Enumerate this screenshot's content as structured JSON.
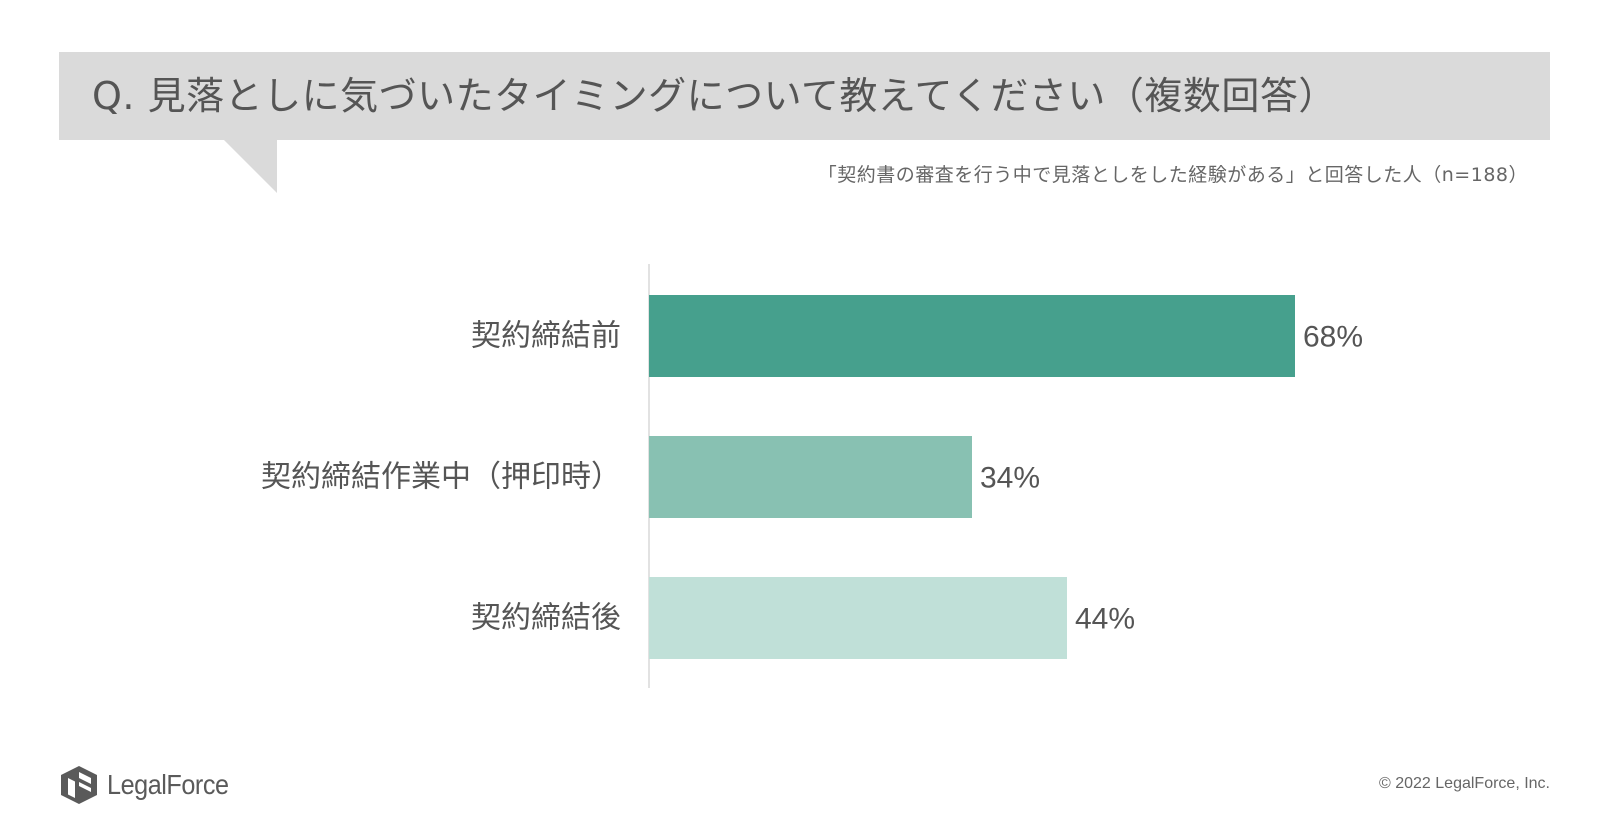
{
  "header": {
    "title": "Q. 見落としに気づいたタイミングについて教えてください（複数回答）",
    "subtitle": "「契約書の審査を行う中で見落としをした経験がある」と回答した人（n=188）"
  },
  "chart_data": {
    "type": "bar",
    "orientation": "horizontal",
    "categories": [
      "契約締結前",
      "契約締結作業中（押印時）",
      "契約締結後"
    ],
    "values": [
      68,
      34,
      44
    ],
    "value_labels": [
      "68%",
      "34%",
      "44%"
    ],
    "colors": [
      "#46a08d",
      "#88c1b2",
      "#c0e0d8"
    ],
    "xlim": [
      0,
      100
    ],
    "grid": false,
    "legend": "none"
  },
  "footer": {
    "logo_text": "LegalForce",
    "copyright": "© 2022 LegalForce, Inc."
  },
  "colors": {
    "header_bg": "#dadada",
    "text": "#555555",
    "axis": "#d9d9d9"
  }
}
